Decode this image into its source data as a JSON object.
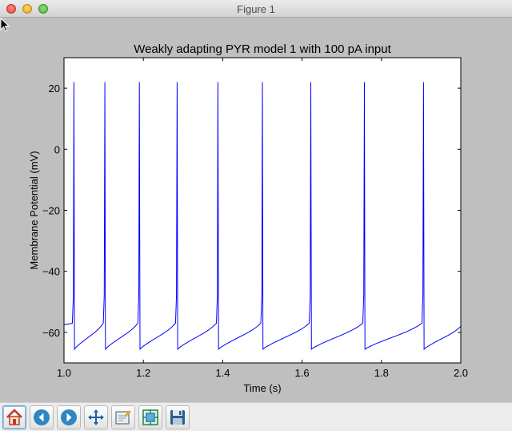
{
  "window": {
    "title": "Figure 1"
  },
  "toolbar": {
    "buttons": [
      {
        "name": "home-button",
        "icon": "home-icon"
      },
      {
        "name": "back-button",
        "icon": "back-arrow-icon"
      },
      {
        "name": "forward-button",
        "icon": "forward-arrow-icon"
      },
      {
        "name": "pan-button",
        "icon": "pan-move-icon"
      },
      {
        "name": "zoom-button",
        "icon": "zoom-rect-icon"
      },
      {
        "name": "subplots-button",
        "icon": "subplots-icon"
      },
      {
        "name": "save-button",
        "icon": "save-icon"
      }
    ]
  },
  "colors": {
    "figure_bg": "#bfbfbf",
    "axes_bg": "#ffffff",
    "trace": "#0000ff"
  },
  "chart_data": {
    "type": "line",
    "title": "Weakly adapting PYR model 1 with 100 pA input",
    "xlabel": "Time (s)",
    "ylabel": "Membrane Potential (mV)",
    "xlim": [
      1.0,
      2.0
    ],
    "ylim": [
      -70,
      30
    ],
    "xticks": [
      1.0,
      1.2,
      1.4,
      1.6,
      1.8,
      2.0
    ],
    "xtick_labels": [
      "1.0",
      "1.2",
      "1.4",
      "1.6",
      "1.8",
      "2.0"
    ],
    "yticks": [
      -60,
      -40,
      -20,
      0,
      20
    ],
    "ytick_labels": [
      "−60",
      "−40",
      "−20",
      "0",
      "20"
    ],
    "grid": false,
    "series": [
      {
        "spike_times": [
          1.025,
          1.103,
          1.19,
          1.285,
          1.388,
          1.5,
          1.622,
          1.757,
          1.906
        ],
        "spike_peak": 22,
        "reset": -65.5,
        "start_value": -57.5,
        "end_value": -58.0
      }
    ]
  }
}
